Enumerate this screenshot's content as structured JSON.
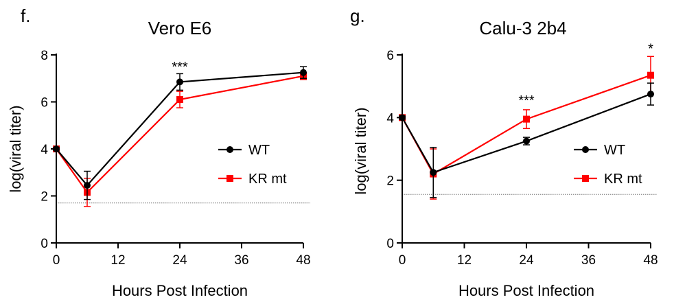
{
  "chart_data": [
    {
      "panel": "f.",
      "type": "line",
      "title": "Vero E6",
      "xlabel": "Hours Post Infection",
      "ylabel": "log(viral titer)",
      "xlim": [
        0,
        48
      ],
      "ylim": [
        0,
        8
      ],
      "xticks": [
        0,
        12,
        24,
        36,
        48
      ],
      "yticks": [
        0,
        2,
        4,
        6,
        8
      ],
      "x": [
        0,
        6,
        24,
        48
      ],
      "limit_of_detection": 1.7,
      "legend_position": "right",
      "series": [
        {
          "name": "WT",
          "color": "#000000",
          "marker": "circle",
          "values": [
            4.0,
            2.45,
            6.85,
            7.25
          ],
          "errors": [
            0.05,
            0.6,
            0.35,
            0.25
          ]
        },
        {
          "name": "KR mt",
          "color": "#ff0000",
          "marker": "square",
          "values": [
            4.0,
            2.15,
            6.1,
            7.1
          ],
          "errors": [
            0.05,
            0.6,
            0.35,
            0.15
          ]
        }
      ],
      "annotations": [
        {
          "x": 24,
          "y": 7.3,
          "text": "***"
        }
      ]
    },
    {
      "panel": "g.",
      "type": "line",
      "title": "Calu-3 2b4",
      "xlabel": "Hours Post Infection",
      "ylabel": "log(viral titer)",
      "xlim": [
        0,
        48
      ],
      "ylim": [
        0,
        6
      ],
      "xticks": [
        0,
        12,
        24,
        36,
        48
      ],
      "yticks": [
        0,
        2,
        4,
        6
      ],
      "x": [
        0,
        6,
        24,
        48
      ],
      "limit_of_detection": 1.55,
      "legend_position": "right",
      "series": [
        {
          "name": "WT",
          "color": "#000000",
          "marker": "circle",
          "values": [
            4.0,
            2.25,
            3.25,
            4.75
          ],
          "errors": [
            0.05,
            0.8,
            0.12,
            0.35
          ]
        },
        {
          "name": "KR mt",
          "color": "#ff0000",
          "marker": "square",
          "values": [
            4.0,
            2.2,
            3.95,
            5.35
          ],
          "errors": [
            0.05,
            0.8,
            0.3,
            0.6
          ]
        }
      ],
      "annotations": [
        {
          "x": 24,
          "y": 4.4,
          "text": "***"
        },
        {
          "x": 48,
          "y": 6.05,
          "text": "*"
        }
      ]
    }
  ]
}
